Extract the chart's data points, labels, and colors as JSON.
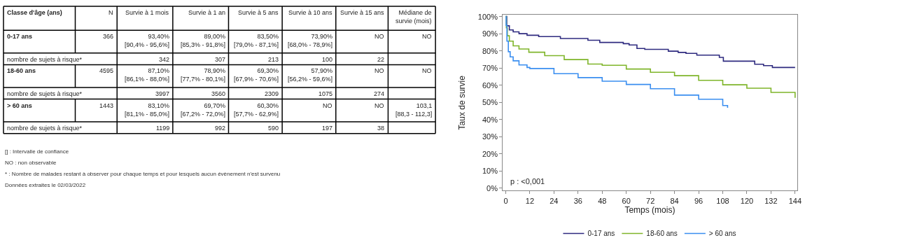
{
  "chart_data": [
    {
      "type": "other",
      "categories": [
        "Classe d'âge (ans)",
        "N",
        "Survie à 1 mois",
        "Survie à 1 an",
        "Survie à 5 ans",
        "Survie à 10 ans",
        "Survie à 15 ans",
        "Médiane de\nsurvie (mois)"
      ],
      "cell_labels": [
        [
          "0-17 ans",
          "366",
          "93,40%\n[90,4% - 95,6%]",
          "89,00%\n[85,3% - 91,8%]",
          "83,50%\n[79,0% - 87,1%]",
          "73,90%\n[68,0% - 78,9%]",
          "NO",
          "NO"
        ],
        [
          "nombre de sujets à risque*",
          null,
          "342",
          "307",
          "213",
          "100",
          "22",
          null
        ],
        [
          "18-60 ans",
          "4595",
          "87,10%\n[86,1% - 88,0%]",
          "78,90%\n[77,7% - 80,1%]",
          "69,30%\n[67,9% - 70,6%]",
          "57,90%\n[56,2% - 59,6%]",
          "NO",
          "NO"
        ],
        [
          "nombre de sujets à risque*",
          null,
          "3997",
          "3560",
          "2309",
          "1075",
          "274",
          null
        ],
        [
          "> 60 ans",
          "1443",
          "83,10%\n[81,1% - 85,0%]",
          "69,70%\n[67,2% - 72,0%]",
          "60,30%\n[57,7% - 62,9%]",
          "NO",
          "NO",
          "103,1\n[88,3 - 112,3]"
        ],
        [
          "nombre de sujets à risque*",
          null,
          "1199",
          "992",
          "590",
          "197",
          "38",
          null
        ]
      ],
      "annotations": [
        "[] : Intervalle de confiance",
        "NO : non observable",
        "* : Nombre de malades restant à observer pour chaque temps et pour lesquels aucun évènement n'est survenu",
        "Données extraites le 02/03/2022"
      ]
    },
    {
      "type": "step",
      "xlabel": "Temps (mois)",
      "ylabel": "Taux de survie",
      "xlim": [
        -1.5,
        145
      ],
      "xticks": [
        0,
        12,
        24,
        36,
        48,
        60,
        72,
        84,
        96,
        108,
        120,
        132,
        144
      ],
      "ylim": [
        -1.5,
        101
      ],
      "yticks": [
        {
          "value": 0,
          "label": "0%"
        },
        {
          "value": 10,
          "label": "10%"
        },
        {
          "value": 20,
          "label": "20%"
        },
        {
          "value": 30,
          "label": "30%"
        },
        {
          "value": 40,
          "label": "40%"
        },
        {
          "value": 50,
          "label": "50%"
        },
        {
          "value": 60,
          "label": "60%"
        },
        {
          "value": 70,
          "label": "70%"
        },
        {
          "value": 80,
          "label": "80%"
        },
        {
          "value": 90,
          "label": "90%"
        },
        {
          "value": 100,
          "label": "100%"
        }
      ],
      "legend": "bottom",
      "annotations": [
        "p : <0,001"
      ],
      "series": [
        {
          "name": "0-17 ans",
          "color": "#2e2a7f",
          "x": [
            0,
            0.5,
            1.8,
            3.7,
            6.6,
            10.6,
            16.4,
            26.7,
            27.2,
            39.9,
            40.9,
            46.8,
            58.5,
            61.4,
            65.3,
            69.2,
            77.5,
            80.9,
            85.8,
            89.7,
            95.1,
            106.3,
            108.3,
            122.9,
            123.9,
            128.3,
            132.7,
            144
          ],
          "values": [
            100,
            94.6,
            92.2,
            91.1,
            90.0,
            89.1,
            88.3,
            88.3,
            87.2,
            87.2,
            86.2,
            84.9,
            84.2,
            83.4,
            81.4,
            80.9,
            80.9,
            79.8,
            79.1,
            78.5,
            77.5,
            76.2,
            74.0,
            74.0,
            72.2,
            71.4,
            70.3,
            70.3
          ]
        },
        {
          "name": "18-60 ans",
          "color": "#7fb52a",
          "x": [
            0,
            0.3,
            0.8,
            1.8,
            3.7,
            6.6,
            11.5,
            19.4,
            29.1,
            40.9,
            48,
            60,
            72,
            84,
            96,
            108,
            120,
            132,
            144
          ],
          "values": [
            100,
            93.4,
            88.8,
            85.7,
            82.9,
            81.1,
            79.2,
            77.2,
            74.9,
            72.3,
            71.6,
            69.4,
            67.5,
            65.5,
            62.8,
            60.2,
            58.2,
            55.8,
            52.6
          ]
        },
        {
          "name": "> 60 ans",
          "color": "#3a8ef0",
          "x": [
            0,
            0.2,
            0.6,
            1.3,
            2.2,
            3.7,
            6.6,
            10.6,
            12,
            24,
            36,
            48,
            60,
            72,
            84,
            96,
            108,
            110.4
          ],
          "values": [
            100,
            94.9,
            85.7,
            79.5,
            76.5,
            74.2,
            71.8,
            70.3,
            69.7,
            66.7,
            64.4,
            62.3,
            60.4,
            57.9,
            54.2,
            51.8,
            48.1,
            46.8
          ]
        }
      ]
    }
  ]
}
